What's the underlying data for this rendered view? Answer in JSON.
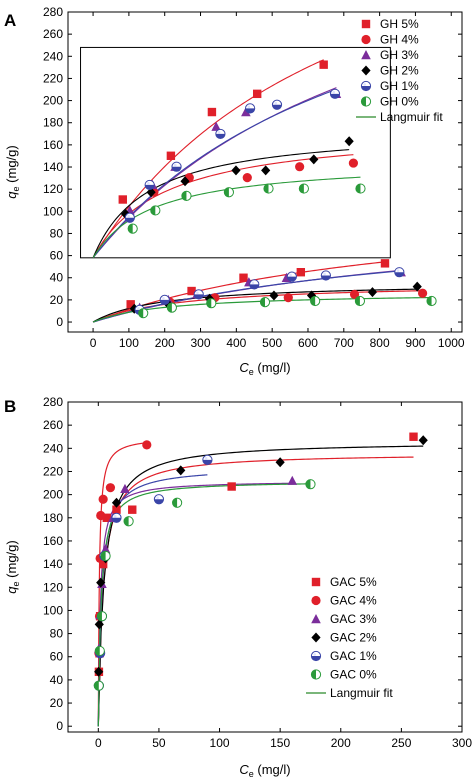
{
  "colors": {
    "GH 5%": "#e0202a",
    "GH 4%": "#e0202a",
    "GH 3%": "#7b2d9b",
    "GH 2%": "#000000",
    "GH 1%": "#3a45a8",
    "GH 0%": "#2a9a3a",
    "GAC 5%": "#e0202a",
    "GAC 4%": "#e0202a",
    "GAC 3%": "#7b2d9b",
    "GAC 2%": "#000000",
    "GAC 1%": "#3a45a8",
    "GAC 0%": "#2a9a3a",
    "fit": "#2a8a2a"
  },
  "chart_data": [
    {
      "type": "scatter",
      "panel": "A",
      "xlabel": "Ce (mg/l)",
      "xlabel_main": "C",
      "xlabel_sub": "e",
      "xlabel_unit": " (mg/l)",
      "ylabel": "qe (mg/g)",
      "ylabel_main": "q",
      "ylabel_sub": "e",
      "ylabel_unit": " (mg/g)",
      "xlim": [
        -70,
        1030
      ],
      "ylim": [
        -9,
        280
      ],
      "xticks": [
        0,
        100,
        200,
        300,
        400,
        500,
        600,
        700,
        800,
        900,
        1000
      ],
      "yticks": [
        0,
        20,
        40,
        60,
        80,
        100,
        120,
        140,
        160,
        180,
        200,
        220,
        240,
        260,
        280
      ],
      "inset_box": {
        "x0": -35,
        "x1": 830,
        "y0": 58,
        "y1": 248
      },
      "series": [
        {
          "name": "GH 5%",
          "marker": "square",
          "points": [
            [
              105,
              16
            ],
            [
              275,
              28
            ],
            [
              420,
              40
            ],
            [
              580,
              45
            ],
            [
              815,
              53
            ]
          ]
        },
        {
          "name": "GH 4%",
          "marker": "circle",
          "points": [
            [
              130,
              11
            ],
            [
              215,
              18
            ],
            [
              340,
              22
            ],
            [
              545,
              22
            ],
            [
              730,
              25
            ],
            [
              920,
              26
            ]
          ]
        },
        {
          "name": "GH 3%",
          "marker": "triangle",
          "points": [
            [
              130,
              13
            ],
            [
              210,
              20
            ],
            [
              290,
              25
            ],
            [
              435,
              36
            ],
            [
              540,
              40
            ],
            [
              860,
              45
            ]
          ]
        },
        {
          "name": "GH 2%",
          "marker": "diamond",
          "points": [
            [
              115,
              12
            ],
            [
              205,
              18
            ],
            [
              325,
              21
            ],
            [
              505,
              24
            ],
            [
              610,
              24
            ],
            [
              780,
              27
            ],
            [
              905,
              32
            ]
          ]
        },
        {
          "name": "GH 1%",
          "marker": "circle-half",
          "points": [
            [
              130,
              11
            ],
            [
              200,
              20
            ],
            [
              295,
              25
            ],
            [
              450,
              34
            ],
            [
              555,
              41
            ],
            [
              650,
              42
            ],
            [
              855,
              45
            ]
          ]
        },
        {
          "name": "GH 0%",
          "marker": "circle-half-v",
          "points": [
            [
              140,
              8
            ],
            [
              220,
              13
            ],
            [
              330,
              17
            ],
            [
              480,
              18
            ],
            [
              620,
              19
            ],
            [
              745,
              19
            ],
            [
              945,
              19
            ]
          ]
        }
      ],
      "fits": [
        {
          "series": "GH 5%",
          "qmax": 115,
          "K": 0.0011
        },
        {
          "series": "GH 4%",
          "qmax": 36,
          "K": 0.004
        },
        {
          "series": "GH 3%",
          "qmax": 107,
          "K": 0.0009
        },
        {
          "series": "GH 2%",
          "qmax": 36,
          "K": 0.0052
        },
        {
          "series": "GH 1%",
          "qmax": 100,
          "K": 0.001
        },
        {
          "series": "GH 0%",
          "qmax": 27,
          "K": 0.0048
        }
      ],
      "legend_position": "top-right",
      "legend_entries": [
        "GH 5%",
        "GH 4%",
        "GH 3%",
        "GH 2%",
        "GH 1%",
        "GH 0%"
      ],
      "fit_label": "Langmuir fit"
    },
    {
      "type": "scatter",
      "panel": "B",
      "xlabel": "Ce (mg/l)",
      "xlabel_main": "C",
      "xlabel_sub": "e",
      "xlabel_unit": " (mg/l)",
      "ylabel": "qe (mg/g)",
      "ylabel_main": "q",
      "ylabel_sub": "e",
      "ylabel_unit": " (mg/g)",
      "xlim": [
        -25,
        300
      ],
      "ylim": [
        -5,
        280
      ],
      "xticks": [
        0,
        50,
        100,
        150,
        200,
        250,
        300
      ],
      "yticks": [
        0,
        20,
        40,
        60,
        80,
        100,
        120,
        140,
        160,
        180,
        200,
        220,
        240,
        260,
        280
      ],
      "series": [
        {
          "name": "GAC 5%",
          "marker": "square",
          "points": [
            [
              0.5,
              47
            ],
            [
              1,
              63
            ],
            [
              1.5,
              95
            ],
            [
              4,
              140
            ],
            [
              7,
              180
            ],
            [
              15,
              187
            ],
            [
              28,
              187
            ],
            [
              110,
              207
            ],
            [
              260,
              250
            ]
          ]
        },
        {
          "name": "GAC 4%",
          "marker": "circle",
          "points": [
            [
              0.5,
              63
            ],
            [
              1,
              95
            ],
            [
              1.5,
              145
            ],
            [
              2,
              182
            ],
            [
              4,
              196
            ],
            [
              10,
              206
            ],
            [
              40,
              243
            ]
          ]
        },
        {
          "name": "GAC 3%",
          "marker": "triangle",
          "points": [
            [
              0.5,
              67
            ],
            [
              1.5,
              96
            ],
            [
              3,
              123
            ],
            [
              6,
              153
            ],
            [
              12,
              180
            ],
            [
              22,
              205
            ],
            [
              160,
              212
            ]
          ]
        },
        {
          "name": "GAC 2%",
          "marker": "diamond",
          "points": [
            [
              0.3,
              47
            ],
            [
              0.8,
              88
            ],
            [
              2,
              124
            ],
            [
              6,
              145
            ],
            [
              15,
              193
            ],
            [
              68,
              221
            ],
            [
              150,
              228
            ],
            [
              268,
              247
            ]
          ]
        },
        {
          "name": "GAC 1%",
          "marker": "circle-half",
          "points": [
            [
              0.5,
              35
            ],
            [
              1.5,
              63
            ],
            [
              3,
              95
            ],
            [
              5,
              147
            ],
            [
              15,
              180
            ],
            [
              50,
              196
            ],
            [
              90,
              230
            ]
          ]
        },
        {
          "name": "GAC 0%",
          "marker": "circle-half-v",
          "points": [
            [
              0.4,
              35
            ],
            [
              1.2,
              65
            ],
            [
              3,
              95
            ],
            [
              6,
              147
            ],
            [
              25,
              177
            ],
            [
              65,
              193
            ],
            [
              175,
              209
            ]
          ]
        }
      ],
      "fits": [
        {
          "series": "GAC 5%",
          "qmax": 236,
          "K": 0.25
        },
        {
          "series": "GAC 4%",
          "qmax": 250,
          "K": 1.2
        },
        {
          "series": "GAC 3%",
          "qmax": 212,
          "K": 0.6
        },
        {
          "series": "GAC 2%",
          "qmax": 246,
          "K": 0.22
        },
        {
          "series": "GAC 1%",
          "qmax": 224,
          "K": 0.35
        },
        {
          "series": "GAC 0%",
          "qmax": 212,
          "K": 0.45
        }
      ],
      "legend_position": "bottom-right",
      "legend_entries": [
        "GAC 5%",
        "GAC 4%",
        "GAC 3%",
        "GAC 2%",
        "GAC 1%",
        "GAC 0%"
      ],
      "fit_label": "Langmuir fit"
    }
  ]
}
